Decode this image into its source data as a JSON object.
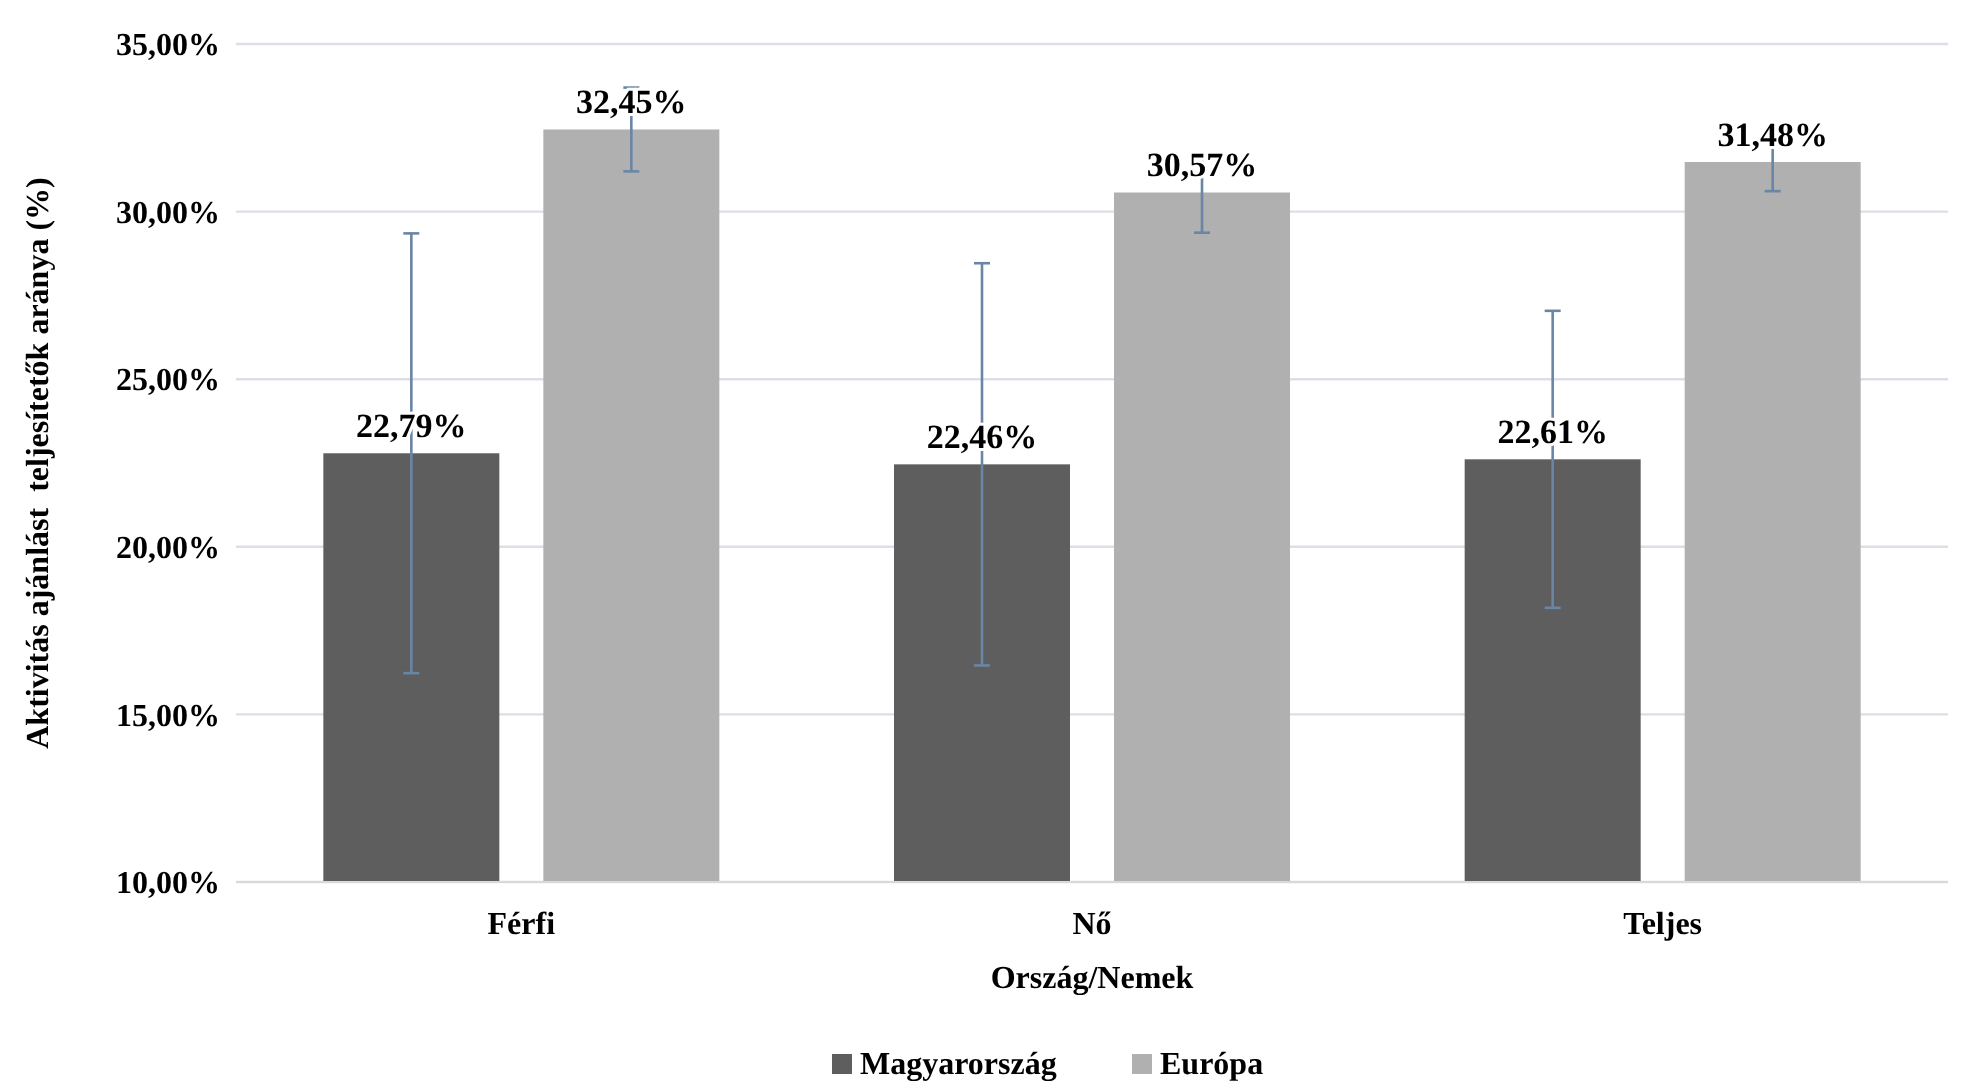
{
  "chart_data": {
    "type": "bar",
    "xlabel": "Ország/Nemek",
    "ylabel": "Aktivitás ajánlást  teljesítetők aránya (%)",
    "categories": [
      "Férfi",
      "Nő",
      "Teljes"
    ],
    "series": [
      {
        "name": "Magyarország",
        "color": "#5e5e5e",
        "values": [
          22.79,
          22.46,
          22.61
        ],
        "errors": [
          6.56,
          6.0,
          4.43
        ]
      },
      {
        "name": "Európa",
        "color": "#b0b0b0",
        "values": [
          32.45,
          30.57,
          31.48
        ],
        "errors": [
          1.25,
          1.2,
          0.87
        ]
      }
    ],
    "value_labels": [
      [
        "22,79%",
        "22,46%",
        "22,61%"
      ],
      [
        "32,45%",
        "30,57%",
        "31,48%"
      ]
    ],
    "ylim": [
      10,
      35
    ],
    "yticks": [
      {
        "value": 10,
        "label": "10,00%"
      },
      {
        "value": 15,
        "label": "15,00%"
      },
      {
        "value": 20,
        "label": "20,00%"
      },
      {
        "value": 25,
        "label": "25,00%"
      },
      {
        "value": 30,
        "label": "30,00%"
      },
      {
        "value": 35,
        "label": "35,00%"
      }
    ],
    "grid": "y",
    "legend": "bottom"
  }
}
